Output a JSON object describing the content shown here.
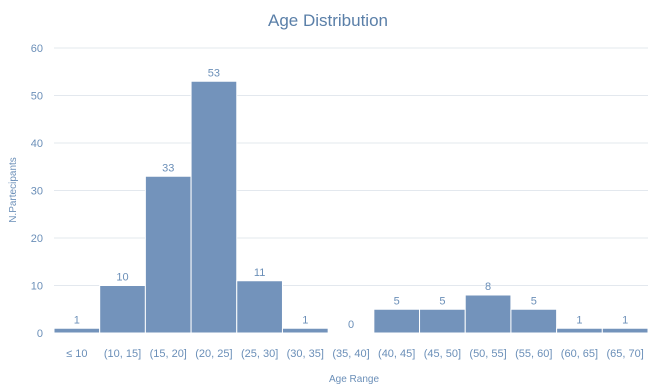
{
  "chart_data": {
    "type": "bar",
    "title": "Age Distribution",
    "xlabel": "Age Range",
    "ylabel": "N.Partecipants",
    "ylim": [
      0,
      60
    ],
    "yticks": [
      0,
      10,
      20,
      30,
      40,
      50,
      60
    ],
    "grid": true,
    "legend": "none",
    "bar_color": "#7393bb",
    "categories": [
      "≤ 10",
      "(10, 15]",
      "(15, 20]",
      "(20, 25]",
      "(25, 30]",
      "(30, 35]",
      "(35, 40]",
      "(40, 45]",
      "(45, 50]",
      "(50, 55]",
      "(55, 60]",
      "(60, 65]",
      "(65, 70]"
    ],
    "values": [
      1,
      10,
      33,
      53,
      11,
      1,
      0,
      5,
      5,
      8,
      5,
      1,
      1
    ]
  }
}
